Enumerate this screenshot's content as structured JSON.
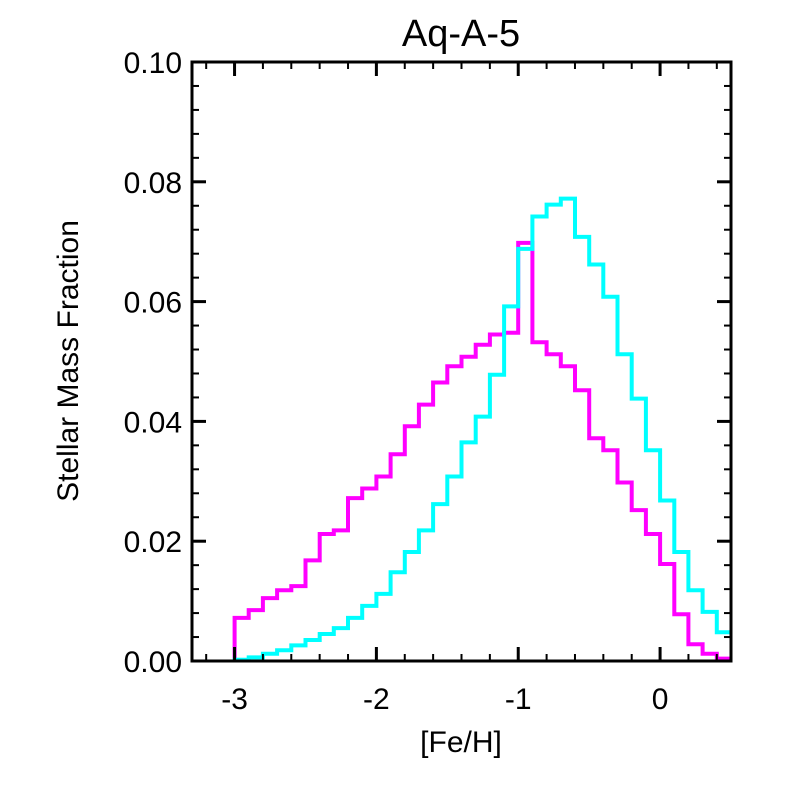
{
  "chart_data": {
    "type": "histogram",
    "title": "Aq-A-5",
    "xlabel": "[Fe/H]",
    "ylabel": "Stellar Mass Fraction",
    "xlim": [
      -3.3,
      0.5
    ],
    "ylim": [
      0.0,
      0.1
    ],
    "xticks": [
      -3,
      -2,
      -1,
      0
    ],
    "xtick_labels": [
      "-3",
      "-2",
      "-1",
      "0"
    ],
    "yticks": [
      0.0,
      0.02,
      0.04,
      0.06,
      0.08,
      0.1
    ],
    "ytick_labels": [
      "0.00",
      "0.02",
      "0.04",
      "0.06",
      "0.08",
      "0.10"
    ],
    "bin_edges": [
      -3.0,
      -2.9,
      -2.8,
      -2.7,
      -2.6,
      -2.5,
      -2.4,
      -2.3,
      -2.2,
      -2.1,
      -2.0,
      -1.9,
      -1.8,
      -1.7,
      -1.6,
      -1.5,
      -1.4,
      -1.3,
      -1.2,
      -1.1,
      -1.0,
      -0.9,
      -0.8,
      -0.7,
      -0.6,
      -0.5,
      -0.4,
      -0.3,
      -0.2,
      -0.1,
      0.0,
      0.1,
      0.2,
      0.3,
      0.4,
      0.5
    ],
    "series": [
      {
        "name": "magenta",
        "color": "#ff00ff",
        "values": [
          0.0072,
          0.0085,
          0.0105,
          0.0118,
          0.0125,
          0.0168,
          0.0212,
          0.0218,
          0.0272,
          0.0288,
          0.0308,
          0.0345,
          0.0392,
          0.0428,
          0.0465,
          0.0492,
          0.0508,
          0.0528,
          0.0545,
          0.0548,
          0.0698,
          0.0532,
          0.0512,
          0.0492,
          0.0452,
          0.0372,
          0.0352,
          0.0298,
          0.0252,
          0.0212,
          0.0162,
          0.0078,
          0.0028,
          0.0012,
          0.0004
        ]
      },
      {
        "name": "cyan",
        "color": "#00ffff",
        "values": [
          0.0002,
          0.0006,
          0.0012,
          0.0018,
          0.0026,
          0.0035,
          0.0045,
          0.0055,
          0.0072,
          0.0092,
          0.0112,
          0.0148,
          0.0182,
          0.0218,
          0.0262,
          0.0308,
          0.0365,
          0.0408,
          0.0478,
          0.0592,
          0.0688,
          0.0742,
          0.0762,
          0.0772,
          0.0708,
          0.0662,
          0.0608,
          0.0512,
          0.0438,
          0.0352,
          0.0268,
          0.0182,
          0.0118,
          0.0082,
          0.0048
        ]
      }
    ]
  }
}
